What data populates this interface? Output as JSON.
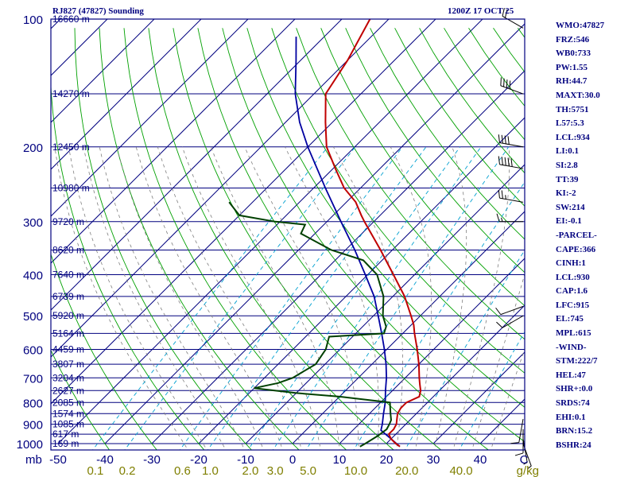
{
  "header": {
    "title": "RJ827 (47827) Sounding",
    "time": "1200Z 17 OCT 25"
  },
  "chart_data": {
    "type": "skew-t",
    "pressure_unit": "mb",
    "mixing_ratio_unit": "g/kg",
    "pressure_levels": [
      {
        "p": 100,
        "label": "100"
      },
      {
        "p": 200,
        "label": "200"
      },
      {
        "p": 300,
        "label": "300"
      },
      {
        "p": 400,
        "label": "400"
      },
      {
        "p": 500,
        "label": "500"
      },
      {
        "p": 600,
        "label": "600"
      },
      {
        "p": 700,
        "label": "700"
      },
      {
        "p": 800,
        "label": "800"
      },
      {
        "p": 900,
        "label": "900"
      },
      {
        "p": 1000,
        "label": "1000"
      }
    ],
    "height_labels": [
      {
        "p": 100,
        "label": "16660 m"
      },
      {
        "p": 150,
        "label": "14270 m"
      },
      {
        "p": 200,
        "label": "12450 m"
      },
      {
        "p": 250,
        "label": "10980 m"
      },
      {
        "p": 300,
        "label": "9720 m"
      },
      {
        "p": 350,
        "label": "8620 m"
      },
      {
        "p": 400,
        "label": "7640 m"
      },
      {
        "p": 450,
        "label": "6739 m"
      },
      {
        "p": 500,
        "label": "5920 m"
      },
      {
        "p": 550,
        "label": "5164 m"
      },
      {
        "p": 600,
        "label": "4459 m"
      },
      {
        "p": 650,
        "label": "3807 m"
      },
      {
        "p": 700,
        "label": "3204 m"
      },
      {
        "p": 750,
        "label": "2627 m"
      },
      {
        "p": 800,
        "label": "2085 m"
      },
      {
        "p": 850,
        "label": "1574 m"
      },
      {
        "p": 900,
        "label": "1085 m"
      },
      {
        "p": 950,
        "label": "617 m"
      },
      {
        "p": 1000,
        "label": "169 m"
      }
    ],
    "temperature_ticks": [
      {
        "t": -50,
        "label": "-50"
      },
      {
        "t": -40,
        "label": "-40"
      },
      {
        "t": -30,
        "label": "-30"
      },
      {
        "t": -20,
        "label": "-20"
      },
      {
        "t": -10,
        "label": "-10"
      },
      {
        "t": 0,
        "label": "0"
      },
      {
        "t": 10,
        "label": "10"
      },
      {
        "t": 20,
        "label": "20"
      },
      {
        "t": 30,
        "label": "30"
      },
      {
        "t": 40,
        "label": "40"
      }
    ],
    "mixing_ratio_ticks": [
      {
        "w": 0.1,
        "label": "0.1"
      },
      {
        "w": 0.2,
        "label": "0.2"
      },
      {
        "w": 0.6,
        "label": "0.6"
      },
      {
        "w": 1.0,
        "label": "1.0"
      },
      {
        "w": 2.0,
        "label": "2.0"
      },
      {
        "w": 3.0,
        "label": "3.0"
      },
      {
        "w": 5.0,
        "label": "5.0"
      },
      {
        "w": 10.0,
        "label": "10.0"
      },
      {
        "w": 20.0,
        "label": "20.0"
      },
      {
        "w": 40.0,
        "label": "40.0"
      }
    ],
    "temperature_profile": [
      [
        1016,
        23.5
      ],
      [
        1000,
        22.0
      ],
      [
        975,
        20.0
      ],
      [
        950,
        18.5
      ],
      [
        925,
        18.5
      ],
      [
        900,
        18.0
      ],
      [
        875,
        17.0
      ],
      [
        850,
        16.0
      ],
      [
        825,
        15.5
      ],
      [
        800,
        15.5
      ],
      [
        775,
        17.0
      ],
      [
        750,
        16.0
      ],
      [
        725,
        14.5
      ],
      [
        700,
        13.0
      ],
      [
        650,
        10.0
      ],
      [
        600,
        6.5
      ],
      [
        550,
        2.5
      ],
      [
        525,
        0.5
      ],
      [
        500,
        -2.0
      ],
      [
        450,
        -7.5
      ],
      [
        400,
        -14.5
      ],
      [
        350,
        -22.5
      ],
      [
        300,
        -32.0
      ],
      [
        290,
        -34.0
      ],
      [
        270,
        -38.0
      ],
      [
        250,
        -43.5
      ],
      [
        225,
        -49.5
      ],
      [
        200,
        -56.0
      ],
      [
        175,
        -61.5
      ],
      [
        150,
        -67.5
      ],
      [
        125,
        -70.0
      ],
      [
        100,
        -74.0
      ]
    ],
    "dewpoint_profile": [
      [
        1016,
        15.0
      ],
      [
        1000,
        15.5
      ],
      [
        960,
        16.5
      ],
      [
        925,
        17.0
      ],
      [
        900,
        16.5
      ],
      [
        880,
        16.0
      ],
      [
        850,
        14.5
      ],
      [
        800,
        12.0
      ],
      [
        775,
        0.0
      ],
      [
        760,
        -10.0
      ],
      [
        740,
        -20.0
      ],
      [
        720,
        -16.0
      ],
      [
        700,
        -14.0
      ],
      [
        650,
        -12.0
      ],
      [
        600,
        -13.0
      ],
      [
        560,
        -15.0
      ],
      [
        550,
        -4.0
      ],
      [
        530,
        -5.0
      ],
      [
        500,
        -8.0
      ],
      [
        450,
        -12.0
      ],
      [
        400,
        -18.0
      ],
      [
        370,
        -24.0
      ],
      [
        350,
        -33.0
      ],
      [
        320,
        -43.0
      ],
      [
        305,
        -44.0
      ],
      [
        300,
        -51.0
      ],
      [
        290,
        -60.0
      ],
      [
        270,
        -65.0
      ]
    ],
    "parcel_profile": [
      [
        1016,
        23.5
      ],
      [
        975,
        20.0
      ],
      [
        930,
        16.0
      ],
      [
        900,
        15.0
      ],
      [
        850,
        13.0
      ],
      [
        800,
        11.0
      ],
      [
        750,
        8.5
      ],
      [
        700,
        6.0
      ],
      [
        650,
        3.0
      ],
      [
        600,
        -0.5
      ],
      [
        550,
        -4.5
      ],
      [
        500,
        -9.0
      ],
      [
        450,
        -14.0
      ],
      [
        400,
        -20.5
      ],
      [
        350,
        -28.0
      ],
      [
        300,
        -37.0
      ],
      [
        250,
        -47.5
      ],
      [
        200,
        -60.0
      ],
      [
        175,
        -67.0
      ],
      [
        150,
        -74.0
      ],
      [
        125,
        -81.0
      ],
      [
        110,
        -86.0
      ]
    ],
    "wind_barbs": [
      {
        "p": 105,
        "dir": 300,
        "spd": 20
      },
      {
        "p": 150,
        "dir": 290,
        "spd": 40
      },
      {
        "p": 200,
        "dir": 280,
        "spd": 40
      },
      {
        "p": 225,
        "dir": 280,
        "spd": 50
      },
      {
        "p": 270,
        "dir": 280,
        "spd": 25
      },
      {
        "p": 300,
        "dir": 270,
        "spd": 15
      },
      {
        "p": 475,
        "dir": 250,
        "spd": 10
      },
      {
        "p": 500,
        "dir": 240,
        "spd": 10
      },
      {
        "p": 875,
        "dir": 190,
        "spd": 10
      },
      {
        "p": 925,
        "dir": 180,
        "spd": 10
      },
      {
        "p": 975,
        "dir": 170,
        "spd": 5
      },
      {
        "p": 1000,
        "dir": 160,
        "spd": 5
      }
    ]
  },
  "indices": [
    "WMO:47827",
    "FRZ:546",
    "WB0:733",
    "PW:1.55",
    "RH:44.7",
    "MAXT:30.0",
    "TH:5751",
    "L57:5.3",
    "LCL:934",
    "LI:0.1",
    "SI:2.8",
    "TT:39",
    "KI:-2",
    "SW:214",
    "EI:-0.1",
    "-PARCEL-",
    "CAPE:366",
    "CINH:1",
    "LCL:930",
    "CAP:1.6",
    "LFC:915",
    "EL:745",
    "MPL:615",
    "-WIND-",
    "STM:222/7",
    "HEL:47",
    "SHR+:0.0",
    "SRDS:74",
    "EHI:0.1",
    "BRN:15.2",
    "BSHR:24"
  ],
  "colors": {
    "frame": "#00007f",
    "isobar": "#00007f",
    "isotherm": "#00007f",
    "dry_adiabat": "#00a000",
    "moist_adiabat": "#7f7f7f",
    "mixing_ratio": "#00a0d0",
    "temperature": "#c00000",
    "dewpoint": "#004000",
    "parcel": "#0000a0",
    "wind_barb": "#000000",
    "label": "#00007f",
    "mr_label": "#7f7f00"
  }
}
